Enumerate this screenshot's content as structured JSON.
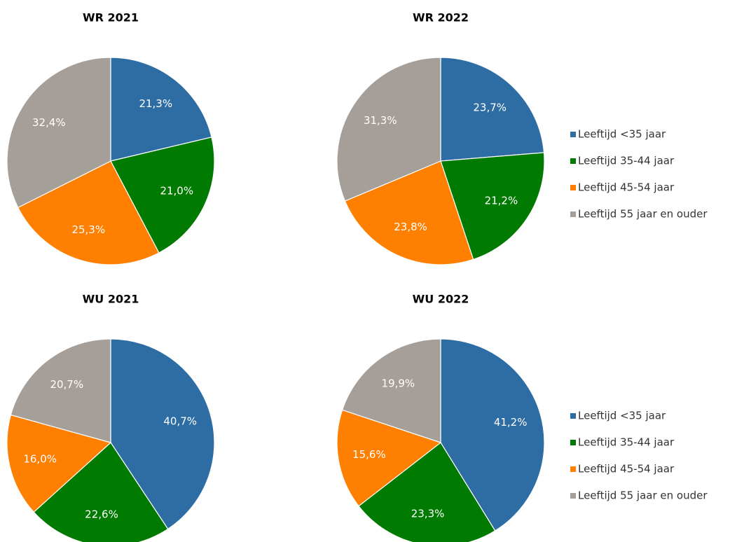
{
  "chart_data": [
    {
      "type": "pie",
      "title": "WR 2021",
      "categories": [
        "Leeftijd <35 jaar",
        "Leeftijd 35-44 jaar",
        "Leeftijd 45-54 jaar",
        "Leeftijd 55 jaar en ouder"
      ],
      "values": [
        21.3,
        21.0,
        25.3,
        32.4
      ],
      "value_labels": [
        "21,3%",
        "21,0%",
        "25,3%",
        "32,4%"
      ],
      "colors": [
        "#2e6da4",
        "#007a00",
        "#ff7f00",
        "#a69e98"
      ]
    },
    {
      "type": "pie",
      "title": "WR 2022",
      "categories": [
        "Leeftijd <35 jaar",
        "Leeftijd 35-44 jaar",
        "Leeftijd 45-54 jaar",
        "Leeftijd 55 jaar en ouder"
      ],
      "values": [
        23.7,
        21.2,
        23.8,
        31.3
      ],
      "value_labels": [
        "23,7%",
        "21,2%",
        "23,8%",
        "31,3%"
      ],
      "colors": [
        "#2e6da4",
        "#007a00",
        "#ff7f00",
        "#a69e98"
      ],
      "legend": "right"
    },
    {
      "type": "pie",
      "title": "WU 2021",
      "categories": [
        "Leeftijd <35 jaar",
        "Leeftijd 35-44 jaar",
        "Leeftijd 45-54 jaar",
        "Leeftijd 55 jaar en ouder"
      ],
      "values": [
        40.7,
        22.6,
        16.0,
        20.7
      ],
      "value_labels": [
        "40,7%",
        "22,6%",
        "16,0%",
        "20,7%"
      ],
      "colors": [
        "#2e6da4",
        "#007a00",
        "#ff7f00",
        "#a69e98"
      ]
    },
    {
      "type": "pie",
      "title": "WU 2022",
      "categories": [
        "Leeftijd <35 jaar",
        "Leeftijd 35-44 jaar",
        "Leeftijd 45-54 jaar",
        "Leeftijd 55 jaar en ouder"
      ],
      "values": [
        41.2,
        23.3,
        15.6,
        19.9
      ],
      "value_labels": [
        "41,2%",
        "23,3%",
        "15,6%",
        "19,9%"
      ],
      "colors": [
        "#2e6da4",
        "#007a00",
        "#ff7f00",
        "#a69e98"
      ],
      "legend": "right"
    }
  ]
}
